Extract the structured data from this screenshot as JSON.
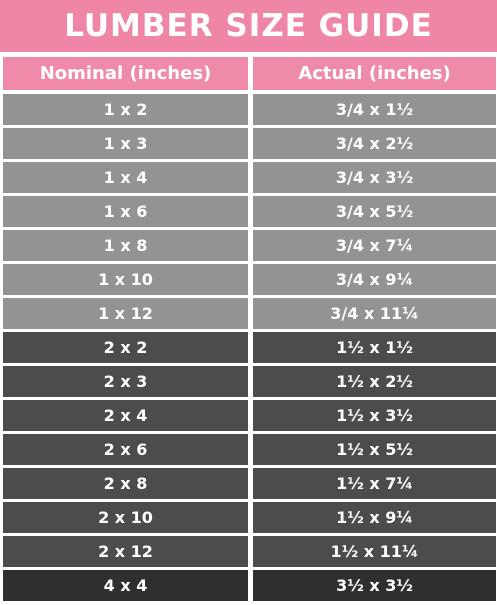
{
  "header": {
    "title": "LUMBER SIZE GUIDE"
  },
  "table": {
    "columns": [
      "Nominal (inches)",
      "Actual (inches)"
    ],
    "rows": [
      [
        "1 x 2",
        "3/4 x 1½"
      ],
      [
        "1 x 3",
        "3/4 x 2½"
      ],
      [
        "1 x 4",
        "3/4 x 3½"
      ],
      [
        "1 x 6",
        "3/4 x 5½"
      ],
      [
        "1 x 8",
        "3/4 x 7¼"
      ],
      [
        "1 x 10",
        "3/4 x 9¼"
      ],
      [
        "1 x 12",
        "3/4 x 11¼"
      ],
      [
        "2 x 2",
        "1½ x 1½"
      ],
      [
        "2 x 3",
        "1½ x 2½"
      ],
      [
        "2 x 4",
        "1½ x 3½"
      ],
      [
        "2 x 6",
        "1½ x 5½"
      ],
      [
        "2 x 8",
        "1½ x 7¼"
      ],
      [
        "2 x 10",
        "1½ x 9¼"
      ],
      [
        "2 x 12",
        "1½ x 11¼"
      ],
      [
        "4 x 4",
        "3½ x 3½"
      ]
    ]
  }
}
